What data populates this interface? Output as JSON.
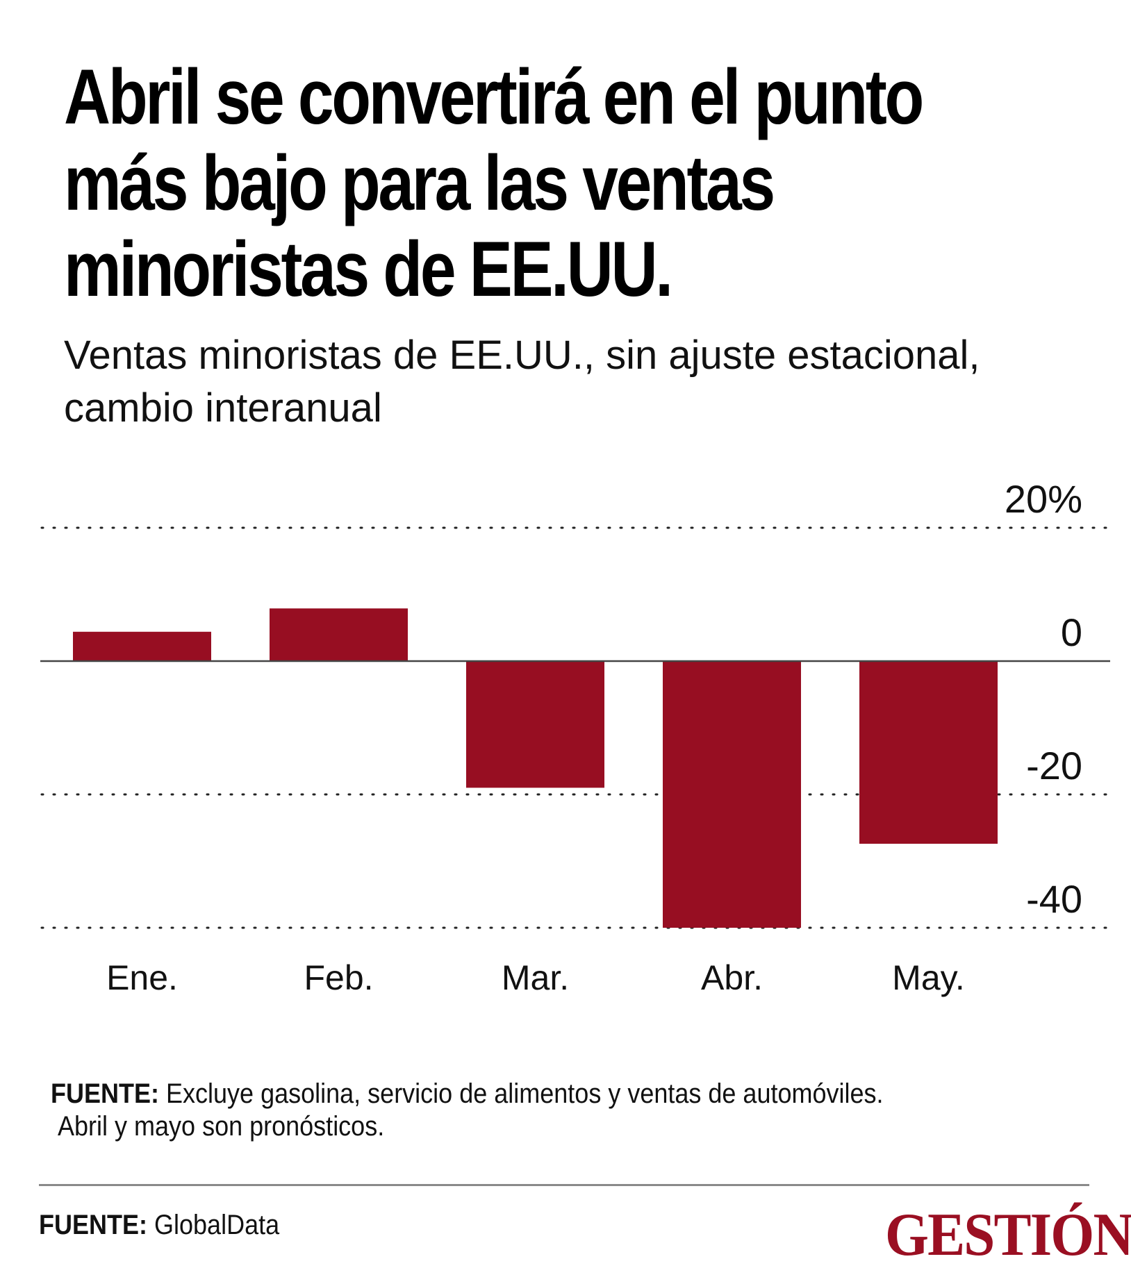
{
  "header": {
    "title_lines": [
      "Abril se convertirá en el punto",
      "más bajo para las ventas",
      "minoristas de EE.UU."
    ],
    "subtitle_lines": [
      "Ventas minoristas de EE.UU., sin ajuste estacional,",
      "cambio interanual"
    ]
  },
  "chart_data": {
    "type": "bar",
    "title": "Abril se convertirá en el punto más bajo para las ventas minoristas de EE.UU.",
    "subtitle": "Ventas minoristas de EE.UU., sin ajuste estacional, cambio interanual",
    "categories": [
      "Ene.",
      "Feb.",
      "Mar.",
      "Abr.",
      "May."
    ],
    "values": [
      4.4,
      7.9,
      -19,
      -40,
      -27.4
    ],
    "ylim": [
      -40,
      20
    ],
    "yticks": [
      20,
      0,
      -20,
      -40
    ],
    "ytick_labels": [
      "20%",
      "0",
      "-20",
      "-40"
    ],
    "grid": "dotted horizontal",
    "bar_color": "#970e22",
    "xlabel": "",
    "ylabel": ""
  },
  "notes": {
    "label": "FUENTE:",
    "line1": "Excluye gasolina, servicio de alimentos y ventas de automóviles.",
    "line2": "Abril y mayo son pronósticos."
  },
  "footer": {
    "source_label": "FUENTE:",
    "source_value": "GlobalData",
    "logo": "GESTIÓN",
    "logo_color": "#9a0f22"
  }
}
